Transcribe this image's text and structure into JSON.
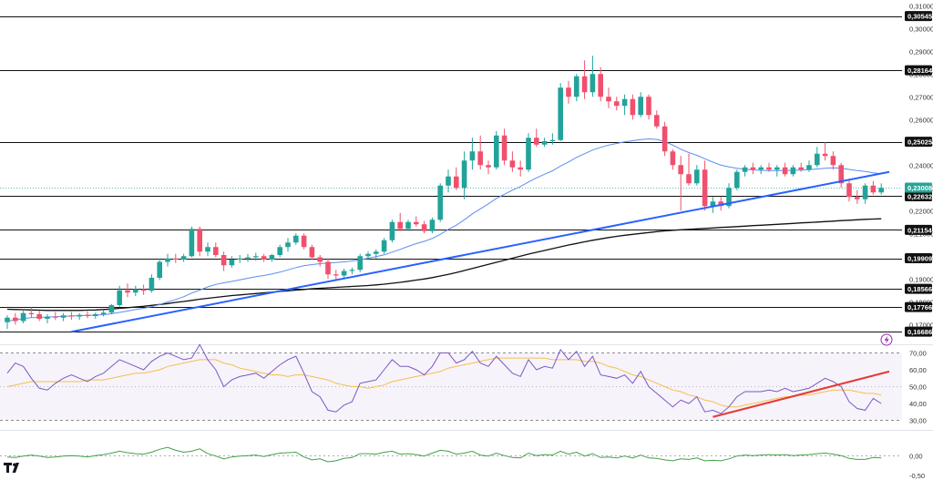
{
  "colors": {
    "up": "#22a39a",
    "down": "#f0506e",
    "trendline": "#2962ff",
    "ma_short": "#5b8def",
    "ma_long": "#111111",
    "rsi": "#7e57c2",
    "rsi_signal": "#f5c04a",
    "uptrend_rsi": "#e53935",
    "osc": "#43a047",
    "level_line": "#111111",
    "level_tag_bg": "#111111",
    "current_price": "#26a69a"
  },
  "chart_data": {
    "type": "candlestick",
    "price_axis": {
      "ylim": [
        0.1625,
        0.3125
      ],
      "ticks": [
        "0,31000",
        "0,30000",
        "0,29000",
        "0,28000",
        "0,27000",
        "0,26000",
        "0,25000",
        "0,24000",
        "0,23000",
        "0,22000",
        "0,21000",
        "0,20000",
        "0,19000",
        "0,18000",
        "0,17000"
      ],
      "tick_values": [
        0.31,
        0.3,
        0.29,
        0.28,
        0.27,
        0.26,
        0.25,
        0.24,
        0.23,
        0.22,
        0.21,
        0.2,
        0.19,
        0.18,
        0.17
      ]
    },
    "levels": [
      {
        "label": "0,30545",
        "value": 0.30545
      },
      {
        "label": "0,28164",
        "value": 0.28164
      },
      {
        "label": "0,25025",
        "value": 0.25025
      },
      {
        "label": "0,22632",
        "value": 0.22632
      },
      {
        "label": "0,21154",
        "value": 0.21154
      },
      {
        "label": "0,19909",
        "value": 0.19909
      },
      {
        "label": "0,18566",
        "value": 0.18566
      },
      {
        "label": "0,17766",
        "value": 0.17766
      },
      {
        "label": "0,16686",
        "value": 0.16686
      }
    ],
    "current_price": {
      "label": "0,23008",
      "value": 0.23008
    },
    "candles": [
      [
        0.171,
        0.174,
        0.168,
        0.173
      ],
      [
        0.173,
        0.175,
        0.17,
        0.1715
      ],
      [
        0.1715,
        0.176,
        0.1705,
        0.175
      ],
      [
        0.175,
        0.1775,
        0.173,
        0.1745
      ],
      [
        0.1745,
        0.176,
        0.1715,
        0.1725
      ],
      [
        0.1725,
        0.1745,
        0.1705,
        0.1735
      ],
      [
        0.1735,
        0.1755,
        0.172,
        0.173
      ],
      [
        0.173,
        0.175,
        0.1715,
        0.174
      ],
      [
        0.174,
        0.1755,
        0.172,
        0.1735
      ],
      [
        0.1735,
        0.175,
        0.172,
        0.1742
      ],
      [
        0.1742,
        0.1758,
        0.1728,
        0.1737
      ],
      [
        0.1737,
        0.1752,
        0.1725,
        0.1745
      ],
      [
        0.1745,
        0.1765,
        0.1735,
        0.1752
      ],
      [
        0.1752,
        0.179,
        0.1745,
        0.1785
      ],
      [
        0.1785,
        0.187,
        0.1775,
        0.185
      ],
      [
        0.185,
        0.188,
        0.182,
        0.184
      ],
      [
        0.184,
        0.187,
        0.1825,
        0.1855
      ],
      [
        0.1855,
        0.1875,
        0.183,
        0.1848
      ],
      [
        0.1848,
        0.192,
        0.184,
        0.1905
      ],
      [
        0.1905,
        0.199,
        0.1895,
        0.1975
      ],
      [
        0.1975,
        0.201,
        0.1955,
        0.199
      ],
      [
        0.199,
        0.201,
        0.197,
        0.1985
      ],
      [
        0.1985,
        0.201,
        0.1975,
        0.2
      ],
      [
        0.2,
        0.213,
        0.1995,
        0.212
      ],
      [
        0.212,
        0.213,
        0.2,
        0.202
      ],
      [
        0.202,
        0.206,
        0.2,
        0.204
      ],
      [
        0.204,
        0.206,
        0.1995,
        0.2005
      ],
      [
        0.2005,
        0.202,
        0.1935,
        0.196
      ],
      [
        0.196,
        0.2,
        0.195,
        0.1985
      ],
      [
        0.1985,
        0.2005,
        0.197,
        0.199
      ],
      [
        0.199,
        0.201,
        0.1975,
        0.1995
      ],
      [
        0.1995,
        0.2015,
        0.198,
        0.2
      ],
      [
        0.2,
        0.201,
        0.1975,
        0.1985
      ],
      [
        0.1985,
        0.201,
        0.1975,
        0.2005
      ],
      [
        0.2005,
        0.205,
        0.1995,
        0.204
      ],
      [
        0.204,
        0.208,
        0.202,
        0.206
      ],
      [
        0.206,
        0.21,
        0.205,
        0.209
      ],
      [
        0.209,
        0.21,
        0.203,
        0.204
      ],
      [
        0.204,
        0.205,
        0.1985,
        0.1995
      ],
      [
        0.1995,
        0.2005,
        0.1955,
        0.1975
      ],
      [
        0.1975,
        0.199,
        0.19,
        0.192
      ],
      [
        0.192,
        0.194,
        0.1895,
        0.1915
      ],
      [
        0.1915,
        0.1945,
        0.1905,
        0.1935
      ],
      [
        0.1935,
        0.195,
        0.192,
        0.194
      ],
      [
        0.194,
        0.201,
        0.193,
        0.2
      ],
      [
        0.2,
        0.202,
        0.1985,
        0.201
      ],
      [
        0.201,
        0.203,
        0.199,
        0.202
      ],
      [
        0.202,
        0.208,
        0.201,
        0.207
      ],
      [
        0.207,
        0.216,
        0.206,
        0.215
      ],
      [
        0.215,
        0.219,
        0.211,
        0.212
      ],
      [
        0.212,
        0.216,
        0.211,
        0.215
      ],
      [
        0.215,
        0.2175,
        0.213,
        0.214
      ],
      [
        0.214,
        0.2155,
        0.21,
        0.211
      ],
      [
        0.211,
        0.217,
        0.21,
        0.216
      ],
      [
        0.216,
        0.232,
        0.215,
        0.231
      ],
      [
        0.231,
        0.238,
        0.228,
        0.235
      ],
      [
        0.235,
        0.239,
        0.229,
        0.23
      ],
      [
        0.23,
        0.246,
        0.225,
        0.242
      ],
      [
        0.242,
        0.252,
        0.238,
        0.246
      ],
      [
        0.246,
        0.253,
        0.238,
        0.24
      ],
      [
        0.24,
        0.242,
        0.236,
        0.239
      ],
      [
        0.239,
        0.255,
        0.238,
        0.253
      ],
      [
        0.253,
        0.256,
        0.24,
        0.242
      ],
      [
        0.242,
        0.246,
        0.237,
        0.239
      ],
      [
        0.239,
        0.242,
        0.235,
        0.238
      ],
      [
        0.238,
        0.254,
        0.237,
        0.252
      ],
      [
        0.252,
        0.256,
        0.248,
        0.249
      ],
      [
        0.249,
        0.252,
        0.248,
        0.2505
      ],
      [
        0.2505,
        0.254,
        0.249,
        0.251
      ],
      [
        0.251,
        0.276,
        0.2505,
        0.274
      ],
      [
        0.274,
        0.277,
        0.267,
        0.27
      ],
      [
        0.27,
        0.28,
        0.268,
        0.279
      ],
      [
        0.279,
        0.286,
        0.269,
        0.272
      ],
      [
        0.272,
        0.288,
        0.27,
        0.28
      ],
      [
        0.28,
        0.283,
        0.268,
        0.27
      ],
      [
        0.27,
        0.274,
        0.265,
        0.268
      ],
      [
        0.268,
        0.27,
        0.264,
        0.266
      ],
      [
        0.266,
        0.271,
        0.262,
        0.269
      ],
      [
        0.269,
        0.271,
        0.26,
        0.262
      ],
      [
        0.262,
        0.272,
        0.261,
        0.27
      ],
      [
        0.27,
        0.271,
        0.26,
        0.262
      ],
      [
        0.262,
        0.264,
        0.256,
        0.257
      ],
      [
        0.257,
        0.259,
        0.244,
        0.246
      ],
      [
        0.246,
        0.247,
        0.238,
        0.24
      ],
      [
        0.24,
        0.244,
        0.22,
        0.236
      ],
      [
        0.236,
        0.245,
        0.231,
        0.232
      ],
      [
        0.232,
        0.24,
        0.231,
        0.238
      ],
      [
        0.238,
        0.242,
        0.22,
        0.222
      ],
      [
        0.222,
        0.226,
        0.219,
        0.224
      ],
      [
        0.224,
        0.226,
        0.22,
        0.222
      ],
      [
        0.222,
        0.232,
        0.221,
        0.23
      ],
      [
        0.23,
        0.238,
        0.229,
        0.237
      ],
      [
        0.237,
        0.24,
        0.235,
        0.239
      ],
      [
        0.239,
        0.241,
        0.236,
        0.238
      ],
      [
        0.238,
        0.24,
        0.236,
        0.239
      ],
      [
        0.239,
        0.241,
        0.237,
        0.238
      ],
      [
        0.238,
        0.24,
        0.235,
        0.239
      ],
      [
        0.239,
        0.241,
        0.235,
        0.236
      ],
      [
        0.236,
        0.24,
        0.235,
        0.239
      ],
      [
        0.239,
        0.241,
        0.237,
        0.238
      ],
      [
        0.238,
        0.242,
        0.237,
        0.24
      ],
      [
        0.24,
        0.248,
        0.239,
        0.245
      ],
      [
        0.245,
        0.25,
        0.242,
        0.244
      ],
      [
        0.244,
        0.246,
        0.238,
        0.24
      ],
      [
        0.24,
        0.241,
        0.23,
        0.232
      ],
      [
        0.232,
        0.234,
        0.224,
        0.226
      ],
      [
        0.226,
        0.229,
        0.223,
        0.225
      ],
      [
        0.225,
        0.232,
        0.223,
        0.231
      ],
      [
        0.231,
        0.233,
        0.227,
        0.228
      ],
      [
        0.228,
        0.232,
        0.227,
        0.23
      ]
    ],
    "ma_short": [
      0.1715,
      0.172,
      0.1726,
      0.173,
      0.1731,
      0.1733,
      0.1734,
      0.1736,
      0.1737,
      0.1739,
      0.174,
      0.1741,
      0.1743,
      0.1747,
      0.1753,
      0.1759,
      0.1766,
      0.1771,
      0.1778,
      0.1788,
      0.1799,
      0.181,
      0.1822,
      0.1838,
      0.1851,
      0.1865,
      0.1876,
      0.1883,
      0.1889,
      0.1896,
      0.1903,
      0.191,
      0.1915,
      0.1922,
      0.193,
      0.194,
      0.195,
      0.1958,
      0.1963,
      0.1967,
      0.197,
      0.1972,
      0.1975,
      0.1979,
      0.1984,
      0.1991,
      0.1998,
      0.2006,
      0.2018,
      0.203,
      0.2043,
      0.2055,
      0.2065,
      0.2078,
      0.2096,
      0.2118,
      0.2136,
      0.216,
      0.2186,
      0.2208,
      0.223,
      0.2254,
      0.2272,
      0.229,
      0.2306,
      0.2326,
      0.2344,
      0.236,
      0.2375,
      0.2396,
      0.2414,
      0.2434,
      0.245,
      0.2466,
      0.2478,
      0.2488,
      0.2495,
      0.2502,
      0.2507,
      0.2512,
      0.2515,
      0.2513,
      0.2503,
      0.2488,
      0.247,
      0.2455,
      0.2443,
      0.2428,
      0.2413,
      0.24,
      0.2392,
      0.2386,
      0.2382,
      0.2379,
      0.2377,
      0.2376,
      0.2376,
      0.2376,
      0.2377,
      0.2378,
      0.238,
      0.2383,
      0.2386,
      0.2388,
      0.2386,
      0.2381,
      0.2376,
      0.2372,
      0.2366,
      0.2362
    ],
    "ma_long": [
      0.1767,
      0.1766,
      0.1765,
      0.1764,
      0.1763,
      0.1762,
      0.1762,
      0.1762,
      0.1762,
      0.1762,
      0.1763,
      0.1764,
      0.1766,
      0.1768,
      0.1771,
      0.1774,
      0.1777,
      0.178,
      0.1784,
      0.1788,
      0.1792,
      0.1797,
      0.1801,
      0.1806,
      0.1811,
      0.1815,
      0.1819,
      0.1823,
      0.1827,
      0.183,
      0.1833,
      0.1836,
      0.1839,
      0.1842,
      0.1845,
      0.1848,
      0.1851,
      0.1854,
      0.1857,
      0.1859,
      0.1861,
      0.1863,
      0.1865,
      0.1867,
      0.1869,
      0.1871,
      0.1874,
      0.1877,
      0.1881,
      0.1885,
      0.189,
      0.1895,
      0.19,
      0.1906,
      0.1913,
      0.192,
      0.1928,
      0.1937,
      0.1946,
      0.1955,
      0.1964,
      0.1973,
      0.1982,
      0.1991,
      0.2,
      0.2009,
      0.2017,
      0.2025,
      0.2033,
      0.2041,
      0.2049,
      0.2056,
      0.2063,
      0.207,
      0.2076,
      0.2082,
      0.2087,
      0.2092,
      0.2096,
      0.21,
      0.2104,
      0.2108,
      0.2111,
      0.2114,
      0.2116,
      0.2118,
      0.212,
      0.2122,
      0.2124,
      0.2126,
      0.2128,
      0.213,
      0.2132,
      0.2134,
      0.2136,
      0.2138,
      0.214,
      0.2142,
      0.2144,
      0.2146,
      0.2148,
      0.215,
      0.2152,
      0.2154,
      0.2156,
      0.2158,
      0.216,
      0.2162,
      0.2163,
      0.2164
    ],
    "trendline": {
      "x": [
        8,
        110
      ],
      "y": [
        0.1668,
        0.237
      ]
    },
    "rsi": {
      "ylim": [
        27,
        73
      ],
      "ticks": [
        "70,00",
        "60,00",
        "50,00",
        "40,00",
        "30,00"
      ],
      "tick_values": [
        70,
        60,
        50,
        40,
        30
      ],
      "dashed_levels": [
        70,
        30
      ],
      "values": [
        58,
        64,
        62,
        55,
        49,
        48,
        52,
        55,
        57,
        55,
        53,
        56,
        58,
        62,
        66,
        64,
        62,
        60,
        65,
        68,
        70,
        68,
        66,
        67,
        75,
        66,
        60,
        50,
        54,
        56,
        57,
        58,
        55,
        59,
        63,
        66,
        68,
        58,
        47,
        44,
        36,
        35,
        39,
        41,
        52,
        53,
        54,
        60,
        66,
        62,
        62,
        60,
        57,
        62,
        70,
        70,
        64,
        66,
        71,
        64,
        62,
        68,
        63,
        58,
        56,
        66,
        60,
        62,
        61,
        72,
        66,
        71,
        62,
        68,
        57,
        56,
        55,
        57,
        52,
        59,
        50,
        46,
        42,
        38,
        42,
        40,
        44,
        35,
        36,
        34,
        38,
        44,
        47,
        47,
        47,
        48,
        47,
        49,
        47,
        48,
        49,
        52,
        55,
        53,
        50,
        41,
        37,
        36,
        43,
        40
      ],
      "signal": [
        50,
        51,
        52,
        53,
        53,
        53,
        53,
        53,
        53,
        53,
        54,
        54,
        54,
        55,
        56,
        57,
        58,
        58,
        59,
        60,
        62,
        63,
        64,
        65,
        66,
        66,
        66,
        64,
        63,
        61,
        60,
        59,
        58,
        57,
        57,
        56,
        57,
        57,
        56,
        55,
        54,
        52,
        51,
        50,
        50,
        49,
        50,
        51,
        53,
        54,
        55,
        56,
        57,
        58,
        59,
        61,
        62,
        63,
        64,
        65,
        66,
        67,
        67,
        67,
        67,
        67,
        67,
        67,
        66,
        66,
        66,
        66,
        65,
        65,
        64,
        62,
        61,
        59,
        57,
        56,
        54,
        52,
        50,
        48,
        47,
        45,
        44,
        42,
        41,
        39,
        38,
        38,
        39,
        40,
        41,
        42,
        43,
        44,
        44,
        45,
        45,
        46,
        47,
        48,
        48,
        48,
        47,
        46,
        46,
        45
      ],
      "uptrend": {
        "x": [
          88,
          110
        ],
        "y": [
          32,
          59
        ]
      }
    },
    "oscillator": {
      "ylim": [
        -0.5,
        0.45
      ],
      "ticks": [
        "0,00",
        "-0,50"
      ],
      "tick_values": [
        0.0,
        -0.5
      ],
      "values": [
        -0.02,
        -0.03,
        0.0,
        0.02,
        0.0,
        -0.03,
        -0.02,
        0.0,
        0.01,
        0.0,
        -0.02,
        0.01,
        0.03,
        0.06,
        0.1,
        0.07,
        0.05,
        0.04,
        0.08,
        0.14,
        0.18,
        0.12,
        0.08,
        0.1,
        0.15,
        0.05,
        0.0,
        -0.06,
        -0.02,
        0.0,
        0.01,
        0.02,
        -0.01,
        0.03,
        0.06,
        0.07,
        0.08,
        -0.02,
        -0.08,
        -0.06,
        -0.12,
        -0.1,
        -0.05,
        -0.03,
        0.05,
        0.05,
        0.04,
        0.08,
        0.1,
        0.04,
        0.05,
        0.03,
        0.0,
        0.06,
        0.12,
        0.1,
        0.04,
        0.06,
        0.1,
        0.02,
        0.0,
        0.06,
        0.01,
        -0.03,
        -0.04,
        0.06,
        0.01,
        0.03,
        0.02,
        0.1,
        0.04,
        0.08,
        0.0,
        0.05,
        -0.03,
        -0.02,
        -0.04,
        0.0,
        -0.04,
        0.02,
        -0.04,
        -0.05,
        -0.08,
        -0.1,
        -0.06,
        -0.07,
        -0.04,
        -0.1,
        -0.09,
        -0.1,
        -0.06,
        0.0,
        0.02,
        0.01,
        0.02,
        0.03,
        0.02,
        0.03,
        0.01,
        0.02,
        0.03,
        0.05,
        0.06,
        0.04,
        0.01,
        -0.05,
        -0.07,
        -0.07,
        -0.03,
        -0.04
      ]
    }
  },
  "logo": {
    "text": "TV"
  }
}
